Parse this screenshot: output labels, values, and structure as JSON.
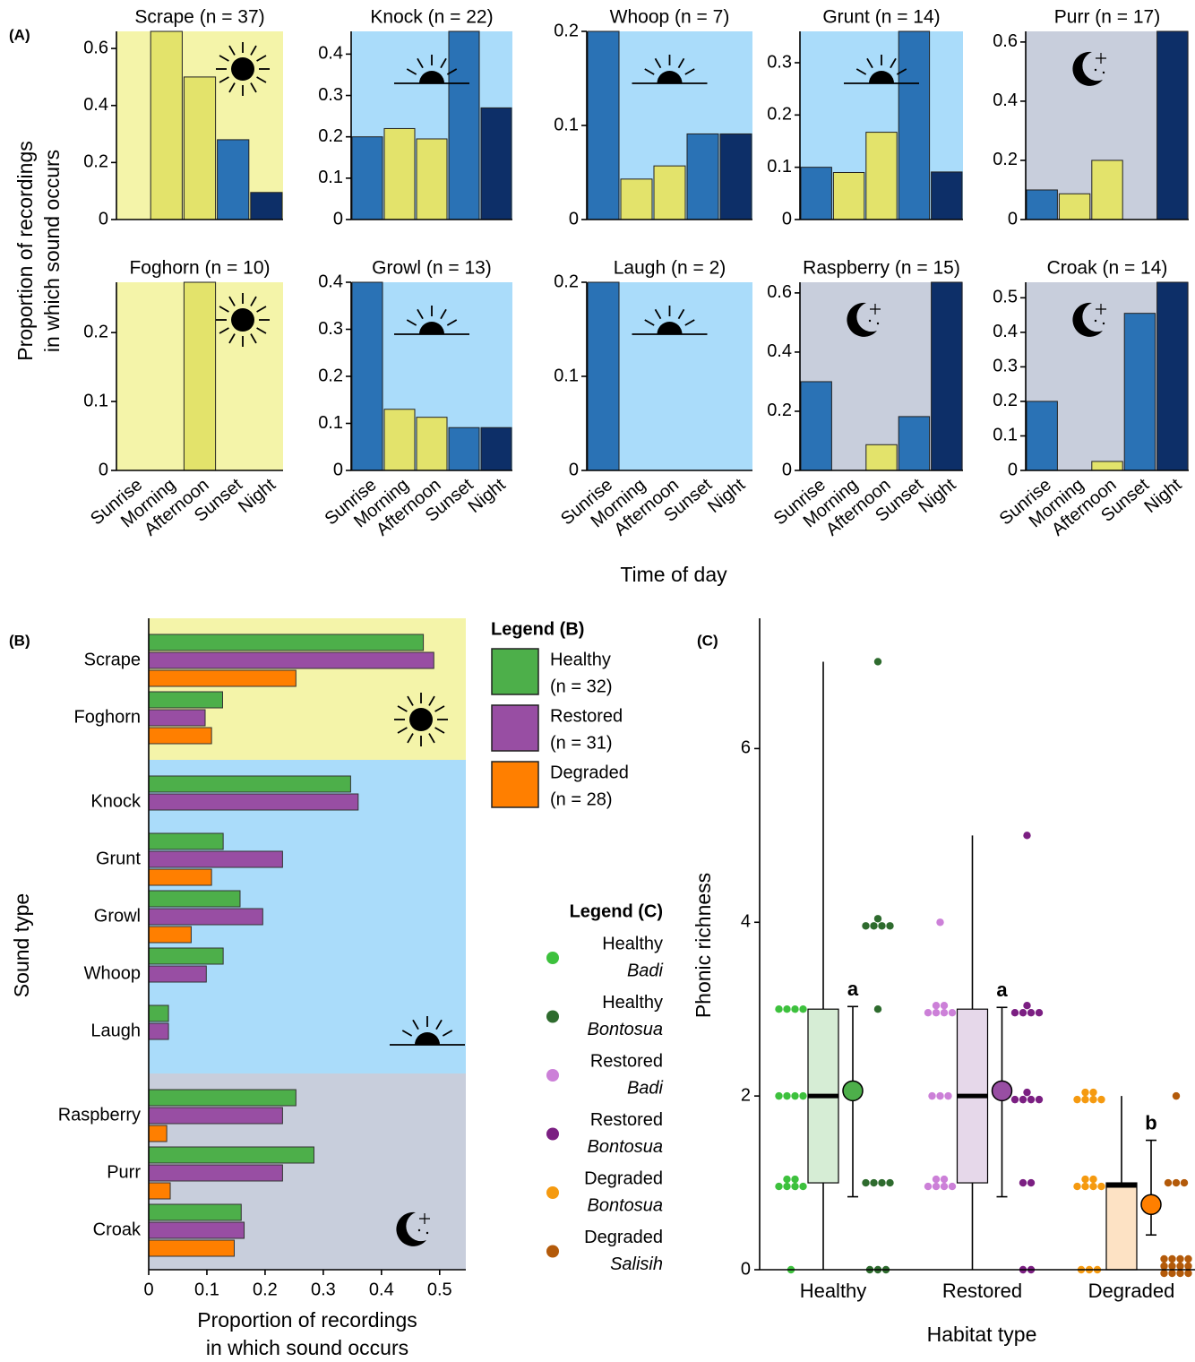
{
  "figure": {
    "panel_labels": [
      "(A)",
      "(B)",
      "(C)"
    ],
    "a_ylabel": [
      "Proportion of recordings",
      "in which sound occurs"
    ],
    "a_xlabel": "Time of day"
  },
  "chart_data": [
    {
      "type": "bar",
      "title": "Scrape (n = 37)",
      "categories": [
        "Sunrise",
        "Morning",
        "Afternoon",
        "Sunset",
        "Night"
      ],
      "values": [
        0,
        0.66,
        0.5,
        0.28,
        0.095
      ],
      "colors": [
        "#2a72b5",
        "#e3e36b",
        "#e3e36b",
        "#2a72b5",
        "#0d2f68"
      ],
      "background": "#f4f4a9",
      "icon": "sun",
      "ylim": [
        0,
        0.66
      ],
      "yticks": [
        0,
        0.2,
        0.4,
        0.6
      ]
    },
    {
      "type": "bar",
      "title": "Knock (n = 22)",
      "categories": [
        "Sunrise",
        "Morning",
        "Afternoon",
        "Sunset",
        "Night"
      ],
      "values": [
        0.2,
        0.22,
        0.195,
        0.455,
        0.27
      ],
      "colors": [
        "#2a72b5",
        "#e3e36b",
        "#e3e36b",
        "#2a72b5",
        "#0d2f68"
      ],
      "background": "#aadcfa",
      "icon": "sunrise",
      "ylim": [
        0,
        0.455
      ],
      "yticks": [
        0,
        0.1,
        0.2,
        0.3,
        0.4
      ]
    },
    {
      "type": "bar",
      "title": "Whoop (n = 7)",
      "categories": [
        "Sunrise",
        "Morning",
        "Afternoon",
        "Sunset",
        "Night"
      ],
      "values": [
        0.2,
        0.043,
        0.057,
        0.091,
        0.091
      ],
      "colors": [
        "#2a72b5",
        "#e3e36b",
        "#e3e36b",
        "#2a72b5",
        "#0d2f68"
      ],
      "background": "#aadcfa",
      "icon": "sunrise",
      "ylim": [
        0,
        0.2
      ],
      "yticks": [
        0,
        0.1,
        0.2
      ]
    },
    {
      "type": "bar",
      "title": "Grunt (n = 14)",
      "categories": [
        "Sunrise",
        "Morning",
        "Afternoon",
        "Sunset",
        "Night"
      ],
      "values": [
        0.1,
        0.09,
        0.167,
        0.36,
        0.091
      ],
      "colors": [
        "#2a72b5",
        "#e3e36b",
        "#e3e36b",
        "#2a72b5",
        "#0d2f68"
      ],
      "background": "#aadcfa",
      "icon": "sunrise",
      "ylim": [
        0,
        0.36
      ],
      "yticks": [
        0,
        0.1,
        0.2,
        0.3
      ]
    },
    {
      "type": "bar",
      "title": "Purr (n = 17)",
      "categories": [
        "Sunrise",
        "Morning",
        "Afternoon",
        "Sunset",
        "Night"
      ],
      "values": [
        0.1,
        0.087,
        0.2,
        0,
        0.636
      ],
      "colors": [
        "#2a72b5",
        "#e3e36b",
        "#e3e36b",
        "#2a72b5",
        "#0d2f68"
      ],
      "background": "#c8cedc",
      "icon": "moon",
      "ylim": [
        0,
        0.636
      ],
      "yticks": [
        0,
        0.2,
        0.4,
        0.6
      ]
    },
    {
      "type": "bar",
      "title": "Foghorn (n = 10)",
      "categories": [
        "Sunrise",
        "Morning",
        "Afternoon",
        "Sunset",
        "Night"
      ],
      "values": [
        0,
        0,
        0.273,
        0,
        0
      ],
      "colors": [
        "#2a72b5",
        "#e3e36b",
        "#e3e36b",
        "#2a72b5",
        "#0d2f68"
      ],
      "background": "#f4f4a9",
      "icon": "sun",
      "ylim": [
        0,
        0.273
      ],
      "yticks": [
        0,
        0.1,
        0.2
      ]
    },
    {
      "type": "bar",
      "title": "Growl (n = 13)",
      "categories": [
        "Sunrise",
        "Morning",
        "Afternoon",
        "Sunset",
        "Night"
      ],
      "values": [
        0.4,
        0.13,
        0.113,
        0.091,
        0.091
      ],
      "colors": [
        "#2a72b5",
        "#e3e36b",
        "#e3e36b",
        "#2a72b5",
        "#0d2f68"
      ],
      "background": "#aadcfa",
      "icon": "sunrise",
      "ylim": [
        0,
        0.4
      ],
      "yticks": [
        0,
        0.1,
        0.2,
        0.3,
        0.4
      ]
    },
    {
      "type": "bar",
      "title": "Laugh (n = 2)",
      "categories": [
        "Sunrise",
        "Morning",
        "Afternoon",
        "Sunset",
        "Night"
      ],
      "values": [
        0.2,
        0,
        0,
        0,
        0
      ],
      "colors": [
        "#2a72b5",
        "#e3e36b",
        "#e3e36b",
        "#2a72b5",
        "#0d2f68"
      ],
      "background": "#aadcfa",
      "icon": "sunrise",
      "ylim": [
        0,
        0.2
      ],
      "yticks": [
        0,
        0.1,
        0.2
      ]
    },
    {
      "type": "bar",
      "title": "Raspberry (n = 15)",
      "categories": [
        "Sunrise",
        "Morning",
        "Afternoon",
        "Sunset",
        "Night"
      ],
      "values": [
        0.3,
        0,
        0.087,
        0.182,
        0.636
      ],
      "colors": [
        "#2a72b5",
        "#e3e36b",
        "#e3e36b",
        "#2a72b5",
        "#0d2f68"
      ],
      "background": "#c8cedc",
      "icon": "moon",
      "ylim": [
        0,
        0.636
      ],
      "yticks": [
        0,
        0.2,
        0.4,
        0.6
      ]
    },
    {
      "type": "bar",
      "title": "Croak (n = 14)",
      "categories": [
        "Sunrise",
        "Morning",
        "Afternoon",
        "Sunset",
        "Night"
      ],
      "values": [
        0.2,
        0,
        0.026,
        0.455,
        0.545
      ],
      "colors": [
        "#2a72b5",
        "#e3e36b",
        "#e3e36b",
        "#2a72b5",
        "#0d2f68"
      ],
      "background": "#c8cedc",
      "icon": "moon",
      "ylim": [
        0,
        0.545
      ],
      "yticks": [
        0,
        0.1,
        0.2,
        0.3,
        0.4,
        0.5
      ]
    },
    {
      "type": "hbar",
      "xlabel": [
        "Proportion of recordings",
        "in which sound occurs"
      ],
      "ylabel": "Sound type",
      "categories": [
        "Scrape",
        "Foghorn",
        "Knock",
        "Grunt",
        "Growl",
        "Whoop",
        "Laugh",
        "Raspberry",
        "Purr",
        "Croak"
      ],
      "backgrounds": [
        "#f4f4a9",
        "#f4f4a9",
        "#aadcfa",
        "#aadcfa",
        "#aadcfa",
        "#aadcfa",
        "#aadcfa",
        "#c8cedc",
        "#c8cedc",
        "#c8cedc"
      ],
      "icons": [
        "sun",
        "sun",
        "sunrise",
        "sunrise",
        "sunrise",
        "sunrise",
        "sunrise",
        "moon",
        "moon",
        "moon"
      ],
      "series": [
        {
          "name": "Healthy",
          "n_label": "(n = 32)",
          "color": "#4daf4a",
          "values": [
            0.472,
            0.127,
            0.347,
            0.128,
            0.157,
            0.128,
            0.034,
            0.253,
            0.284,
            0.159
          ]
        },
        {
          "name": "Restored",
          "n_label": "(n = 31)",
          "color": "#984ea3",
          "values": [
            0.49,
            0.097,
            0.36,
            0.23,
            0.196,
            0.099,
            0.034,
            0.23,
            0.23,
            0.164
          ]
        },
        {
          "name": "Degraded",
          "n_label": "(n = 28)",
          "color": "#ff7f00",
          "values": [
            0.253,
            0.108,
            0,
            0.108,
            0.073,
            0,
            0,
            0.031,
            0.037,
            0.147
          ]
        }
      ],
      "legend_title": "Legend (B)",
      "xlim": [
        0,
        0.545
      ],
      "xticks": [
        0,
        0.1,
        0.2,
        0.3,
        0.4,
        0.5
      ]
    },
    {
      "type": "box",
      "xlabel": "Habitat type",
      "ylabel": "Phonic richness",
      "categories": [
        "Healthy",
        "Restored",
        "Degraded"
      ],
      "box_colors": [
        "#d6edd5",
        "#e6d8ea",
        "#fde2c4"
      ],
      "boxes": [
        {
          "whislo": 0,
          "q1": 1,
          "med": 2,
          "q3": 3,
          "whishi": 7
        },
        {
          "whislo": 0,
          "q1": 1,
          "med": 2,
          "q3": 3,
          "whishi": 5
        },
        {
          "whislo": 0,
          "q1": 0,
          "med": 0.97,
          "q3": 1,
          "whishi": 2
        }
      ],
      "means": [
        2.06,
        2.06,
        0.75
      ],
      "mean_colors": [
        "#4daf4a",
        "#984ea3",
        "#ff7f00"
      ],
      "ci": [
        [
          0.84,
          3.03
        ],
        [
          0.84,
          3.02
        ],
        [
          0.4,
          1.49
        ]
      ],
      "letters": [
        "a",
        "a",
        "b"
      ],
      "series": [
        {
          "habitat": "Healthy",
          "site": "Badi",
          "color": "#3dc13d",
          "values": [
            3,
            3,
            3,
            3,
            2,
            2,
            2,
            2,
            1,
            1,
            1,
            1,
            1,
            1,
            0
          ]
        },
        {
          "habitat": "Healthy",
          "site": "Bontosua",
          "color": "#2e6b2e",
          "values": [
            7,
            4,
            4,
            4,
            4,
            4,
            3,
            1,
            1,
            1,
            1,
            0,
            0,
            0
          ]
        },
        {
          "habitat": "Restored",
          "site": "Badi",
          "color": "#cc80d8",
          "values": [
            4,
            3,
            3,
            3,
            3,
            3,
            3,
            2,
            2,
            2,
            1,
            1,
            1,
            1,
            1,
            1
          ]
        },
        {
          "habitat": "Restored",
          "site": "Bontosua",
          "color": "#7b1f82",
          "values": [
            5,
            3,
            3,
            3,
            3,
            3,
            2,
            2,
            2,
            2,
            2,
            1,
            1,
            0,
            0
          ]
        },
        {
          "habitat": "Degraded",
          "site": "Bontosua",
          "color": "#f59a10",
          "values": [
            2,
            2,
            2,
            2,
            2,
            2,
            1,
            1,
            1,
            1,
            1,
            1,
            0,
            0,
            0
          ]
        },
        {
          "habitat": "Degraded",
          "site": "Salisih",
          "color": "#b35a0a",
          "values": [
            2,
            1,
            1,
            1,
            0,
            0,
            0,
            0,
            0,
            0,
            0,
            0,
            0,
            0,
            0,
            0
          ]
        }
      ],
      "legend_title": "Legend (C)",
      "ylim": [
        0,
        7.5
      ],
      "yticks": [
        0,
        2,
        4,
        6
      ]
    }
  ]
}
